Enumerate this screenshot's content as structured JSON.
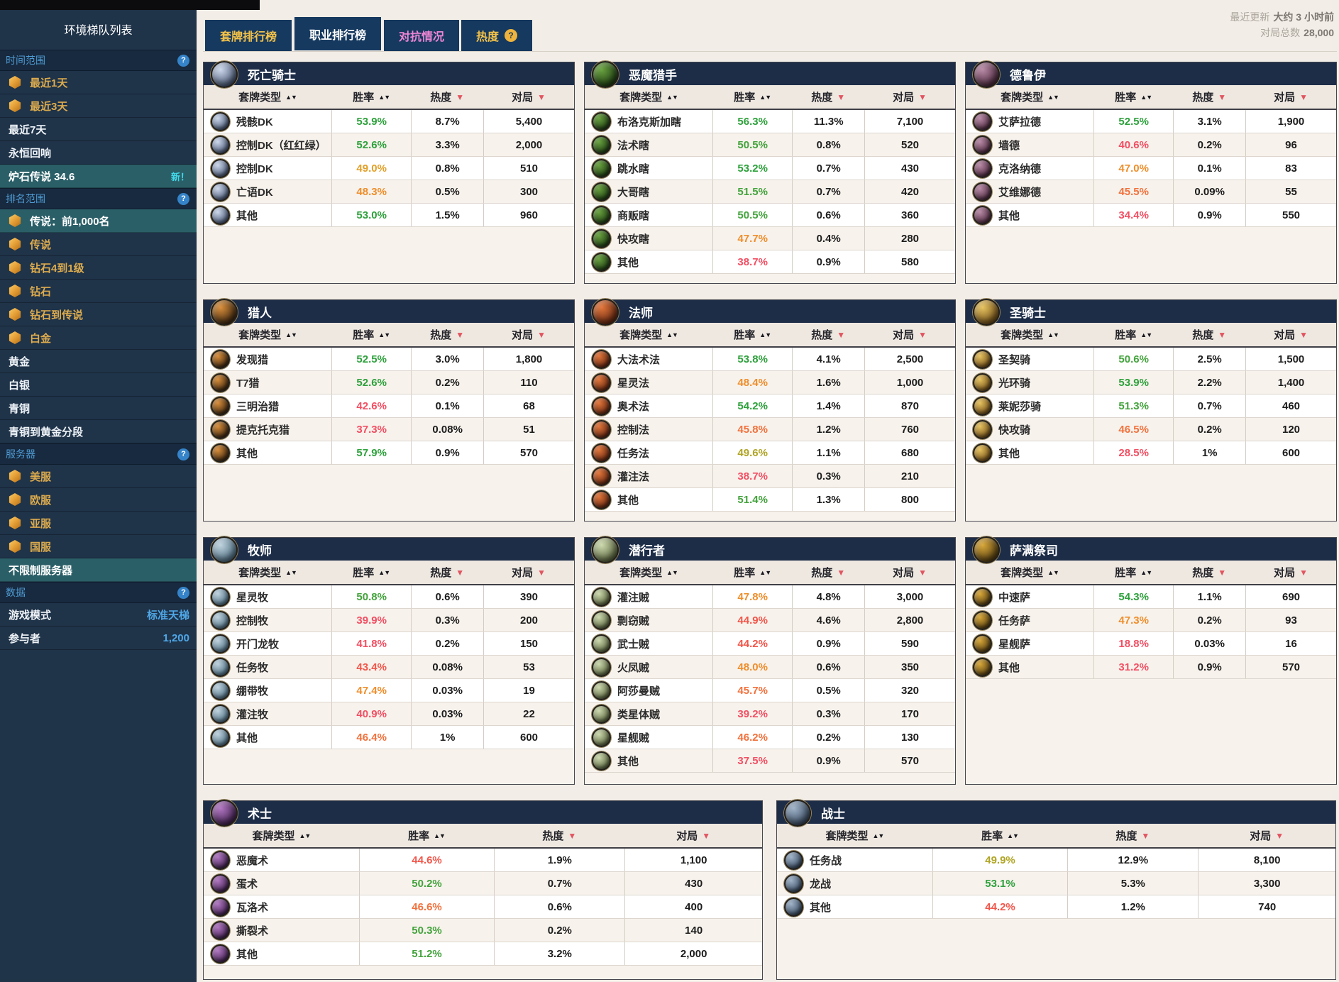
{
  "sidebar": {
    "title": "环境梯队列表",
    "sections": [
      {
        "label": "时间范围",
        "help": false,
        "items": [
          {
            "label": "最近1天",
            "premium": true
          },
          {
            "label": "最近3天",
            "premium": true
          },
          {
            "label": "最近7天"
          },
          {
            "label": "永恒回响"
          },
          {
            "label": "炉石传说 34.6",
            "selected": true,
            "badge": "新！"
          }
        ]
      },
      {
        "label": "排名范围",
        "help": true,
        "items": [
          {
            "label": "传说：前1,000名",
            "premium": true,
            "selected": true
          },
          {
            "label": "传说",
            "premium": true
          },
          {
            "label": "钻石4到1级",
            "premium": true
          },
          {
            "label": "钻石",
            "premium": true
          },
          {
            "label": "钻石到传说",
            "premium": true
          },
          {
            "label": "白金",
            "premium": true
          },
          {
            "label": "黄金"
          },
          {
            "label": "白银"
          },
          {
            "label": "青铜"
          },
          {
            "label": "青铜到黄金分段"
          }
        ]
      },
      {
        "label": "服务器",
        "help": true,
        "items": [
          {
            "label": "美服",
            "premium": true
          },
          {
            "label": "欧服",
            "premium": true
          },
          {
            "label": "亚服",
            "premium": true
          },
          {
            "label": "国服",
            "premium": true
          },
          {
            "label": "不限制服务器",
            "selected": true
          }
        ]
      },
      {
        "label": "数据",
        "help": false,
        "kv": [
          {
            "label": "游戏模式",
            "value": "标准天梯"
          },
          {
            "label": "参与者",
            "value": "1,200"
          }
        ]
      }
    ]
  },
  "tabs": [
    {
      "label": "套牌排行榜",
      "style": "gold",
      "active": false,
      "help": false
    },
    {
      "label": "职业排行榜",
      "style": "white",
      "active": true,
      "help": false
    },
    {
      "label": "对抗情况",
      "style": "pink",
      "active": false,
      "help": false
    },
    {
      "label": "热度",
      "style": "gold",
      "active": false,
      "help": true
    }
  ],
  "meta": {
    "updated_label": "最近更新",
    "updated_value": "大约 3 小时前",
    "total_label": "对局总数",
    "total_value": "28,000"
  },
  "columns": {
    "archetype": "套牌类型",
    "winrate": "胜率",
    "popularity": "热度",
    "games": "对局"
  },
  "winrate_scale": [
    {
      "min": 52.5,
      "color": "#2ea13c"
    },
    {
      "min": 50.0,
      "color": "#43a33c"
    },
    {
      "min": 49.5,
      "color": "#b0a524"
    },
    {
      "min": 48.6,
      "color": "#e2a029"
    },
    {
      "min": 47.0,
      "color": "#ef8e2b"
    },
    {
      "min": 45.4,
      "color": "#f2713c"
    },
    {
      "min": 43.0,
      "color": "#f2564a"
    },
    {
      "min": 0,
      "color": "#f24f63"
    }
  ],
  "classes": [
    {
      "id": "deathknight",
      "name": "死亡骑士",
      "icon_colors": {
        "light": "#cdd8ec",
        "dark": "#44536f"
      },
      "rows": [
        {
          "archetype": "残骸DK",
          "winrate": "53.9%",
          "wr": 53.9,
          "popularity": "8.7%",
          "games": "5,400"
        },
        {
          "archetype": "控制DK（红红绿）",
          "winrate": "52.6%",
          "wr": 52.6,
          "popularity": "3.3%",
          "games": "2,000"
        },
        {
          "archetype": "控制DK",
          "winrate": "49.0%",
          "wr": 49.0,
          "popularity": "0.8%",
          "games": "510"
        },
        {
          "archetype": "亡语DK",
          "winrate": "48.3%",
          "wr": 48.3,
          "popularity": "0.5%",
          "games": "300"
        },
        {
          "archetype": "其他",
          "winrate": "53.0%",
          "wr": 53.0,
          "popularity": "1.5%",
          "games": "960"
        }
      ]
    },
    {
      "id": "demonhunter",
      "name": "恶魔猎手",
      "icon_colors": {
        "light": "#69a23f",
        "dark": "#1d3a12"
      },
      "rows": [
        {
          "archetype": "布洛克斯加瞎",
          "winrate": "56.3%",
          "wr": 56.3,
          "popularity": "11.3%",
          "games": "7,100"
        },
        {
          "archetype": "法术瞎",
          "winrate": "50.5%",
          "wr": 50.5,
          "popularity": "0.8%",
          "games": "520"
        },
        {
          "archetype": "跳水瞎",
          "winrate": "53.2%",
          "wr": 53.2,
          "popularity": "0.7%",
          "games": "430"
        },
        {
          "archetype": "大哥瞎",
          "winrate": "51.5%",
          "wr": 51.5,
          "popularity": "0.7%",
          "games": "420"
        },
        {
          "archetype": "商贩瞎",
          "winrate": "50.5%",
          "wr": 50.5,
          "popularity": "0.6%",
          "games": "360"
        },
        {
          "archetype": "快攻瞎",
          "winrate": "47.7%",
          "wr": 47.7,
          "popularity": "0.4%",
          "games": "280"
        },
        {
          "archetype": "其他",
          "winrate": "38.7%",
          "wr": 38.7,
          "popularity": "0.9%",
          "games": "580"
        }
      ]
    },
    {
      "id": "druid",
      "name": "德鲁伊",
      "icon_colors": {
        "light": "#b98aa6",
        "dark": "#47263a"
      },
      "rows": [
        {
          "archetype": "艾萨拉德",
          "winrate": "52.5%",
          "wr": 52.5,
          "popularity": "3.1%",
          "games": "1,900"
        },
        {
          "archetype": "墙德",
          "winrate": "40.6%",
          "wr": 40.6,
          "popularity": "0.2%",
          "games": "96"
        },
        {
          "archetype": "克洛纳德",
          "winrate": "47.0%",
          "wr": 47.0,
          "popularity": "0.1%",
          "games": "83"
        },
        {
          "archetype": "艾维娜德",
          "winrate": "45.5%",
          "wr": 45.5,
          "popularity": "0.09%",
          "games": "55"
        },
        {
          "archetype": "其他",
          "winrate": "34.4%",
          "wr": 34.4,
          "popularity": "0.9%",
          "games": "550"
        }
      ]
    },
    {
      "id": "hunter",
      "name": "猎人",
      "icon_colors": {
        "light": "#d98e3a",
        "dark": "#3a2510"
      },
      "rows": [
        {
          "archetype": "发现猎",
          "winrate": "52.5%",
          "wr": 52.5,
          "popularity": "3.0%",
          "games": "1,800"
        },
        {
          "archetype": "T7猎",
          "winrate": "52.6%",
          "wr": 52.6,
          "popularity": "0.2%",
          "games": "110"
        },
        {
          "archetype": "三明治猎",
          "winrate": "42.6%",
          "wr": 42.6,
          "popularity": "0.1%",
          "games": "68"
        },
        {
          "archetype": "提克托克猎",
          "winrate": "37.3%",
          "wr": 37.3,
          "popularity": "0.08%",
          "games": "51"
        },
        {
          "archetype": "其他",
          "winrate": "57.9%",
          "wr": 57.9,
          "popularity": "0.9%",
          "games": "570"
        }
      ]
    },
    {
      "id": "mage",
      "name": "法师",
      "icon_colors": {
        "light": "#e2763a",
        "dark": "#5f2410"
      },
      "rows": [
        {
          "archetype": "大法术法",
          "winrate": "53.8%",
          "wr": 53.8,
          "popularity": "4.1%",
          "games": "2,500"
        },
        {
          "archetype": "星灵法",
          "winrate": "48.4%",
          "wr": 48.4,
          "popularity": "1.6%",
          "games": "1,000"
        },
        {
          "archetype": "奥术法",
          "winrate": "54.2%",
          "wr": 54.2,
          "popularity": "1.4%",
          "games": "870"
        },
        {
          "archetype": "控制法",
          "winrate": "45.8%",
          "wr": 45.8,
          "popularity": "1.2%",
          "games": "760"
        },
        {
          "archetype": "任务法",
          "winrate": "49.6%",
          "wr": 49.6,
          "popularity": "1.1%",
          "games": "680"
        },
        {
          "archetype": "灌注法",
          "winrate": "38.7%",
          "wr": 38.7,
          "popularity": "0.3%",
          "games": "210"
        },
        {
          "archetype": "其他",
          "winrate": "51.4%",
          "wr": 51.4,
          "popularity": "1.3%",
          "games": "800"
        }
      ]
    },
    {
      "id": "paladin",
      "name": "圣骑士",
      "icon_colors": {
        "light": "#e7c35f",
        "dark": "#6b4a16"
      },
      "rows": [
        {
          "archetype": "圣契骑",
          "winrate": "50.6%",
          "wr": 50.6,
          "popularity": "2.5%",
          "games": "1,500"
        },
        {
          "archetype": "光环骑",
          "winrate": "53.9%",
          "wr": 53.9,
          "popularity": "2.2%",
          "games": "1,400"
        },
        {
          "archetype": "莱妮莎骑",
          "winrate": "51.3%",
          "wr": 51.3,
          "popularity": "0.7%",
          "games": "460"
        },
        {
          "archetype": "快攻骑",
          "winrate": "46.5%",
          "wr": 46.5,
          "popularity": "0.2%",
          "games": "120"
        },
        {
          "archetype": "其他",
          "winrate": "28.5%",
          "wr": 28.5,
          "popularity": "1%",
          "games": "600"
        }
      ]
    },
    {
      "id": "priest",
      "name": "牧师",
      "icon_colors": {
        "light": "#bfd3de",
        "dark": "#4a6a7e"
      },
      "rows": [
        {
          "archetype": "星灵牧",
          "winrate": "50.8%",
          "wr": 50.8,
          "popularity": "0.6%",
          "games": "390"
        },
        {
          "archetype": "控制牧",
          "winrate": "39.9%",
          "wr": 39.9,
          "popularity": "0.3%",
          "games": "200"
        },
        {
          "archetype": "开门龙牧",
          "winrate": "41.8%",
          "wr": 41.8,
          "popularity": "0.2%",
          "games": "150"
        },
        {
          "archetype": "任务牧",
          "winrate": "43.4%",
          "wr": 43.4,
          "popularity": "0.08%",
          "games": "53"
        },
        {
          "archetype": "绷带牧",
          "winrate": "47.4%",
          "wr": 47.4,
          "popularity": "0.03%",
          "games": "19"
        },
        {
          "archetype": "灌注牧",
          "winrate": "40.9%",
          "wr": 40.9,
          "popularity": "0.03%",
          "games": "22"
        },
        {
          "archetype": "其他",
          "winrate": "46.4%",
          "wr": 46.4,
          "popularity": "1%",
          "games": "600"
        }
      ]
    },
    {
      "id": "rogue",
      "name": "潜行者",
      "icon_colors": {
        "light": "#cdd9ae",
        "dark": "#55603a"
      },
      "rows": [
        {
          "archetype": "灌注贼",
          "winrate": "47.8%",
          "wr": 47.8,
          "popularity": "4.8%",
          "games": "3,000"
        },
        {
          "archetype": "剽窃贼",
          "winrate": "44.9%",
          "wr": 44.9,
          "popularity": "4.6%",
          "games": "2,800"
        },
        {
          "archetype": "武士贼",
          "winrate": "44.2%",
          "wr": 44.2,
          "popularity": "0.9%",
          "games": "590"
        },
        {
          "archetype": "火凤贼",
          "winrate": "48.0%",
          "wr": 48.0,
          "popularity": "0.6%",
          "games": "350"
        },
        {
          "archetype": "阿莎曼贼",
          "winrate": "45.7%",
          "wr": 45.7,
          "popularity": "0.5%",
          "games": "320"
        },
        {
          "archetype": "类星体贼",
          "winrate": "39.2%",
          "wr": 39.2,
          "popularity": "0.3%",
          "games": "170"
        },
        {
          "archetype": "星舰贼",
          "winrate": "46.2%",
          "wr": 46.2,
          "popularity": "0.2%",
          "games": "130"
        },
        {
          "archetype": "其他",
          "winrate": "37.5%",
          "wr": 37.5,
          "popularity": "0.9%",
          "games": "570"
        }
      ]
    },
    {
      "id": "shaman",
      "name": "萨满祭司",
      "icon_colors": {
        "light": "#d9a839",
        "dark": "#4f3a10"
      },
      "rows": [
        {
          "archetype": "中速萨",
          "winrate": "54.3%",
          "wr": 54.3,
          "popularity": "1.1%",
          "games": "690"
        },
        {
          "archetype": "任务萨",
          "winrate": "47.3%",
          "wr": 47.3,
          "popularity": "0.2%",
          "games": "93"
        },
        {
          "archetype": "星舰萨",
          "winrate": "18.8%",
          "wr": 18.8,
          "popularity": "0.03%",
          "games": "16"
        },
        {
          "archetype": "其他",
          "winrate": "31.2%",
          "wr": 31.2,
          "popularity": "0.9%",
          "games": "570"
        }
      ]
    },
    {
      "id": "warlock",
      "name": "术士",
      "wide": true,
      "icon_colors": {
        "light": "#b277c2",
        "dark": "#3c1e4a"
      },
      "rows": [
        {
          "archetype": "恶魔术",
          "winrate": "44.6%",
          "wr": 44.6,
          "popularity": "1.9%",
          "games": "1,100"
        },
        {
          "archetype": "蛋术",
          "winrate": "50.2%",
          "wr": 50.2,
          "popularity": "0.7%",
          "games": "430"
        },
        {
          "archetype": "瓦洛术",
          "winrate": "46.6%",
          "wr": 46.6,
          "popularity": "0.6%",
          "games": "400"
        },
        {
          "archetype": "撕裂术",
          "winrate": "50.3%",
          "wr": 50.3,
          "popularity": "0.2%",
          "games": "140"
        },
        {
          "archetype": "其他",
          "winrate": "51.2%",
          "wr": 51.2,
          "popularity": "3.2%",
          "games": "2,000"
        }
      ]
    },
    {
      "id": "warrior",
      "name": "战士",
      "wide": true,
      "icon_colors": {
        "light": "#9fb3c8",
        "dark": "#35465c"
      },
      "rows": [
        {
          "archetype": "任务战",
          "winrate": "49.9%",
          "wr": 49.9,
          "popularity": "12.9%",
          "games": "8,100"
        },
        {
          "archetype": "龙战",
          "winrate": "53.1%",
          "wr": 53.1,
          "popularity": "5.3%",
          "games": "3,300"
        },
        {
          "archetype": "其他",
          "winrate": "44.2%",
          "wr": 44.2,
          "popularity": "1.2%",
          "games": "740"
        }
      ]
    }
  ]
}
